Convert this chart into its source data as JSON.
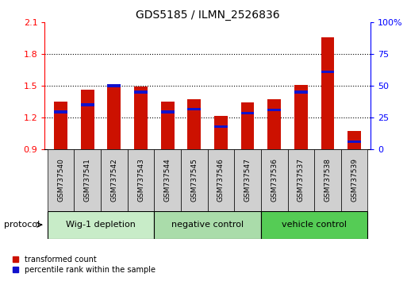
{
  "title": "GDS5185 / ILMN_2526836",
  "samples": [
    "GSM737540",
    "GSM737541",
    "GSM737542",
    "GSM737543",
    "GSM737544",
    "GSM737545",
    "GSM737546",
    "GSM737547",
    "GSM737536",
    "GSM737537",
    "GSM737538",
    "GSM737539"
  ],
  "red_values": [
    1.35,
    1.46,
    1.51,
    1.49,
    1.35,
    1.37,
    1.21,
    1.34,
    1.37,
    1.51,
    1.96,
    1.07
  ],
  "blue_values": [
    1.25,
    1.32,
    1.5,
    1.44,
    1.25,
    1.28,
    1.11,
    1.24,
    1.27,
    1.44,
    1.63,
    0.97
  ],
  "baseline": 0.9,
  "ylim_left": [
    0.9,
    2.1
  ],
  "ylim_right": [
    0,
    100
  ],
  "yticks_left": [
    0.9,
    1.2,
    1.5,
    1.8,
    2.1
  ],
  "yticks_right": [
    0,
    25,
    50,
    75,
    100
  ],
  "ytick_labels_right": [
    "0",
    "25",
    "50",
    "75",
    "100%"
  ],
  "protocol_groups": [
    {
      "label": "Wig-1 depletion",
      "start": 0,
      "end": 4,
      "color": "#c8ecc8"
    },
    {
      "label": "negative control",
      "start": 4,
      "end": 8,
      "color": "#aadcaa"
    },
    {
      "label": "vehicle control",
      "start": 8,
      "end": 12,
      "color": "#55cc55"
    }
  ],
  "bar_color": "#cc1100",
  "blue_color": "#1111cc",
  "bar_width": 0.5,
  "protocol_label": "protocol",
  "legend_red": "transformed count",
  "legend_blue": "percentile rank within the sample",
  "sample_box_color": "#d0d0d0",
  "title_fontsize": 10,
  "tick_fontsize": 8,
  "sample_fontsize": 6.5,
  "proto_fontsize": 8,
  "legend_fontsize": 7
}
